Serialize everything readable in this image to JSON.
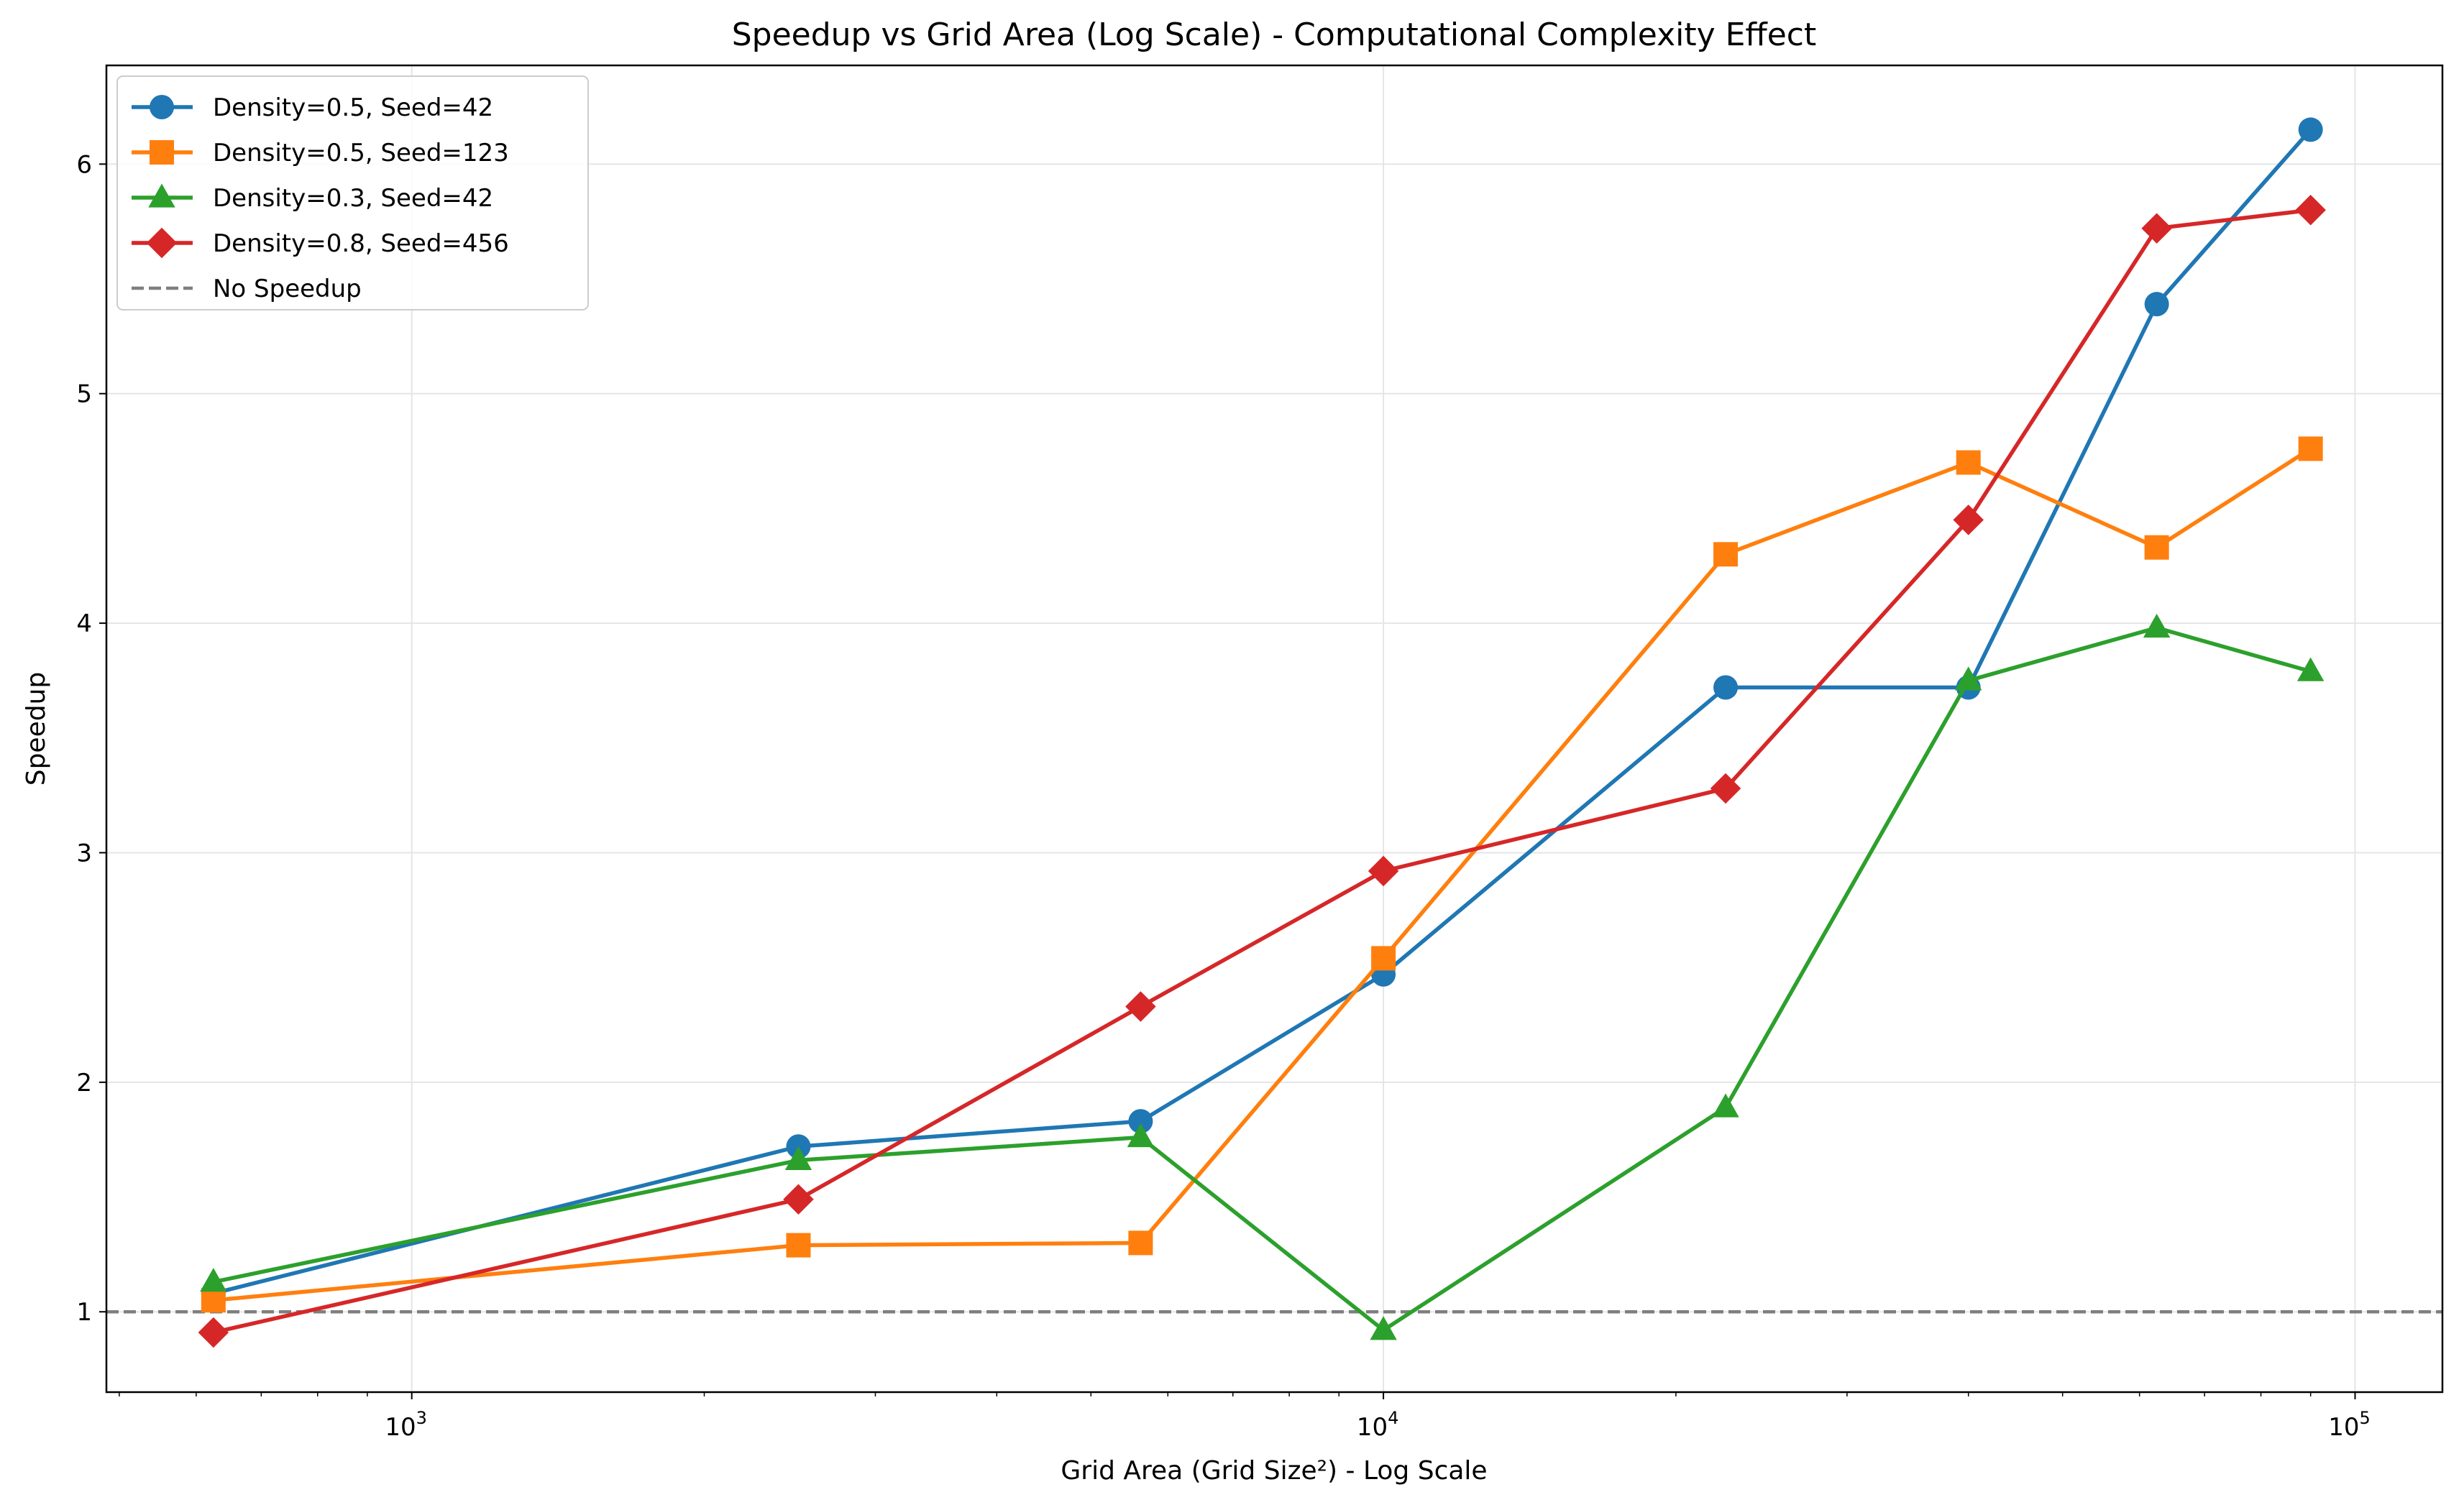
{
  "chart_data": {
    "type": "line",
    "title": "Speedup vs Grid Area (Log Scale) - Computational Complexity Effect",
    "xlabel": "Grid Area (Grid Size²) - Log Scale",
    "ylabel": "Speedup",
    "x_scale": "log",
    "xlim": [
      485,
      123000
    ],
    "ylim": [
      0.65,
      6.43
    ],
    "x_ticks": [
      {
        "value": 1000,
        "base": "10",
        "exp": "3"
      },
      {
        "value": 10000,
        "base": "10",
        "exp": "4"
      },
      {
        "value": 100000,
        "base": "10",
        "exp": "5"
      }
    ],
    "y_ticks": [
      1,
      2,
      3,
      4,
      5,
      6
    ],
    "grid": true,
    "legend_position": "top-left",
    "x": [
      625,
      2500,
      5625,
      10000,
      22500,
      40000,
      62500,
      90000
    ],
    "series": [
      {
        "name": "Density=0.5, Seed=42",
        "color": "#1f77b4",
        "marker": "circle",
        "values": [
          1.08,
          1.72,
          1.83,
          2.47,
          3.72,
          3.72,
          5.39,
          6.15
        ]
      },
      {
        "name": "Density=0.5, Seed=123",
        "color": "#ff7f0e",
        "marker": "square",
        "values": [
          1.05,
          1.29,
          1.3,
          2.54,
          4.3,
          4.7,
          4.33,
          4.76
        ]
      },
      {
        "name": "Density=0.3, Seed=42",
        "color": "#2ca02c",
        "marker": "triangle",
        "values": [
          1.13,
          1.66,
          1.76,
          0.92,
          1.89,
          3.75,
          3.98,
          3.79
        ]
      },
      {
        "name": "Density=0.8, Seed=456",
        "color": "#d62728",
        "marker": "diamond",
        "values": [
          0.91,
          1.49,
          2.33,
          2.92,
          3.28,
          4.45,
          5.72,
          5.8
        ]
      }
    ],
    "reference_line": {
      "name": "No Speedup",
      "y": 1,
      "color": "#7f7f7f"
    }
  }
}
